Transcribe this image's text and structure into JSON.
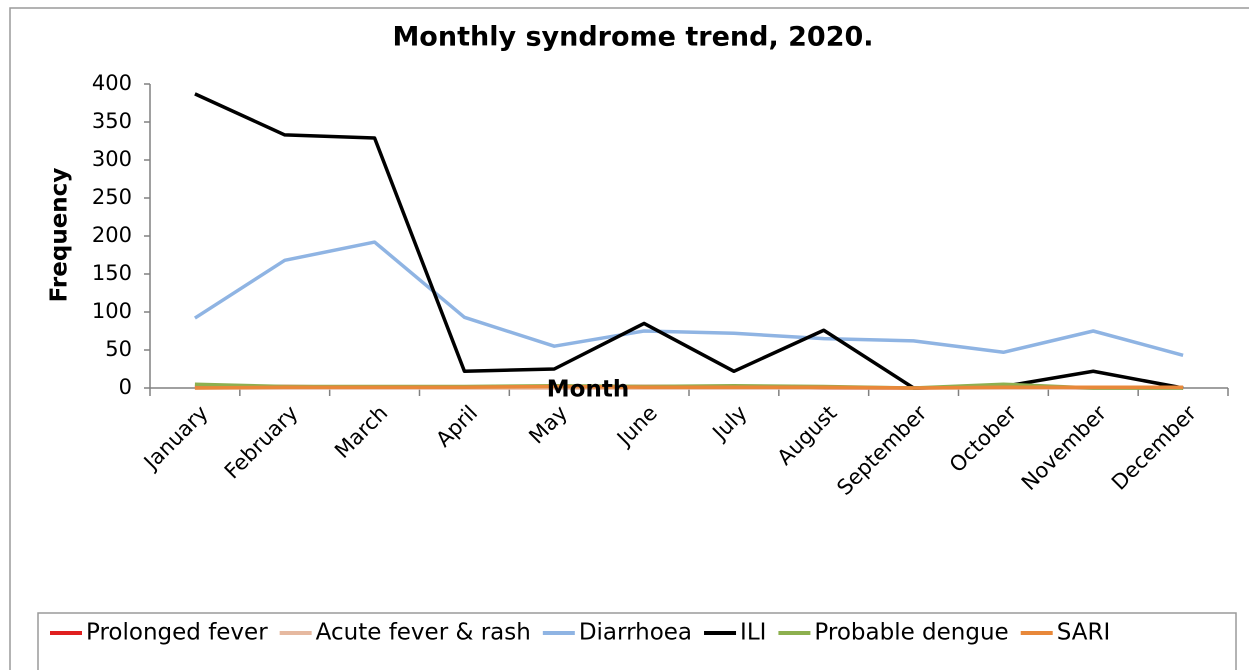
{
  "chart_data": {
    "type": "line",
    "title": "Monthly syndrome trend, 2020.",
    "x_label": "Month",
    "y_label": "Frequency",
    "categories": [
      "January",
      "February",
      "March",
      "April",
      "May",
      "June",
      "July",
      "August",
      "September",
      "October",
      "November",
      "December"
    ],
    "series": [
      {
        "name": "Prolonged fever",
        "color": "#e02020",
        "values": [
          1,
          2,
          1,
          1,
          1,
          2,
          2,
          0,
          0,
          1,
          0,
          0
        ]
      },
      {
        "name": "Acute fever & rash",
        "color": "#e6b9a0",
        "values": [
          0,
          0,
          0,
          0,
          0,
          0,
          0,
          0,
          0,
          0,
          0,
          0
        ]
      },
      {
        "name": "Diarrhoea",
        "color": "#8fb4e3",
        "values": [
          92,
          168,
          192,
          93,
          55,
          75,
          72,
          65,
          62,
          47,
          75,
          43
        ]
      },
      {
        "name": "ILI",
        "color": "#000000",
        "values": [
          387,
          333,
          329,
          22,
          25,
          85,
          22,
          76,
          0,
          2,
          22,
          0
        ]
      },
      {
        "name": "Probable dengue",
        "color": "#8db04f",
        "values": [
          5,
          2,
          2,
          2,
          3,
          2,
          3,
          2,
          0,
          5,
          0,
          0
        ]
      },
      {
        "name": "SARI",
        "color": "#e8883a",
        "values": [
          0,
          1,
          1,
          1,
          2,
          1,
          1,
          1,
          0,
          1,
          1,
          1
        ]
      }
    ],
    "ylim": [
      0,
      400
    ],
    "yticks": [
      0,
      50,
      100,
      150,
      200,
      250,
      300,
      350,
      400
    ],
    "grid": false,
    "legend": "bottom"
  }
}
